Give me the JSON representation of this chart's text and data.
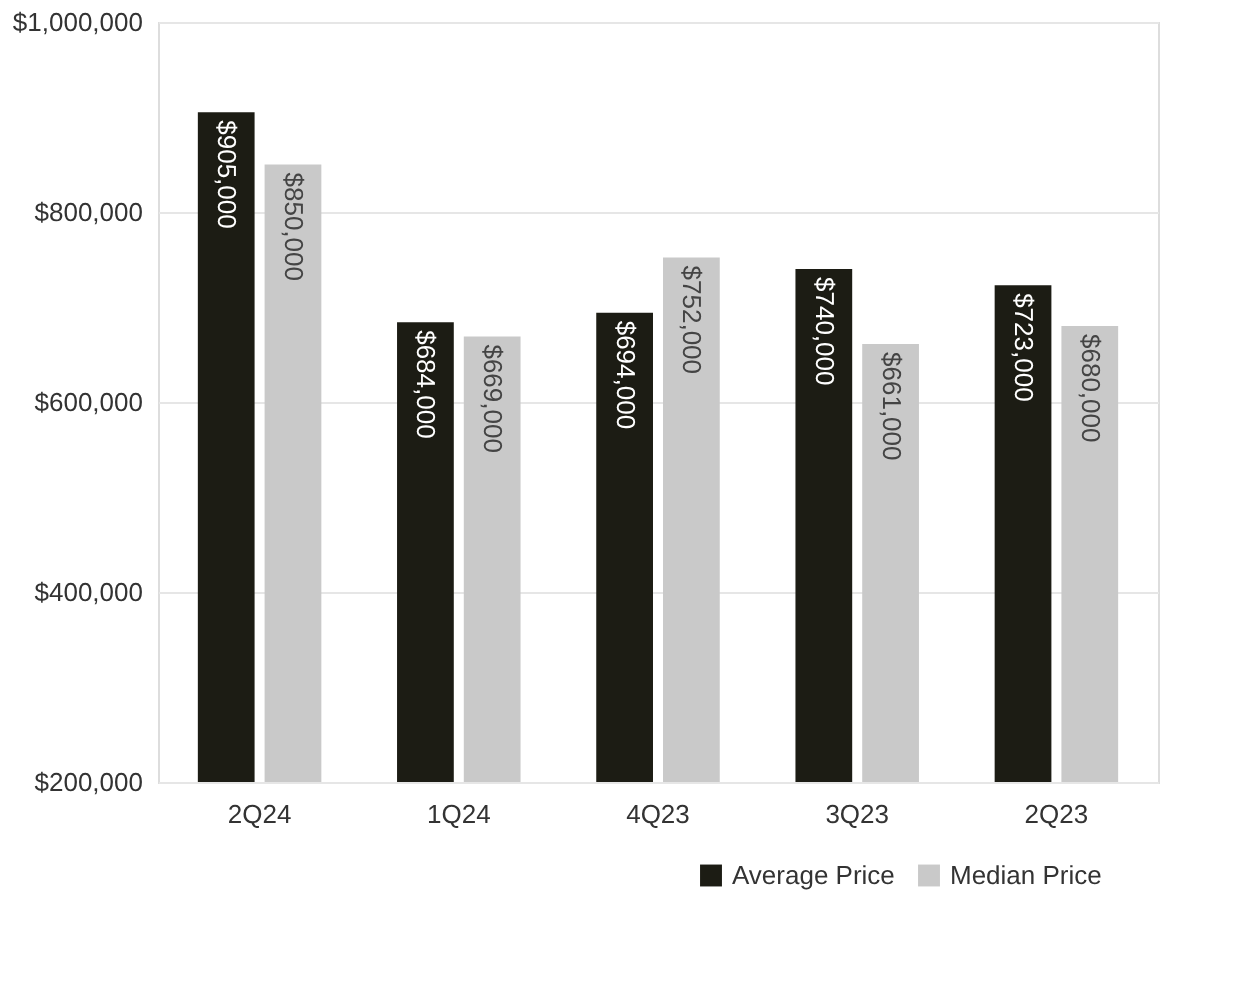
{
  "chart_data": {
    "type": "bar",
    "categories": [
      "2Q24",
      "1Q24",
      "4Q23",
      "3Q23",
      "2Q23"
    ],
    "series": [
      {
        "name": "Average Price",
        "color": "#1c1c14",
        "values": [
          905000,
          684000,
          694000,
          740000,
          723000
        ],
        "value_labels": [
          "$905,000",
          "$684,000",
          "$694,000",
          "$740,000",
          "$723,000"
        ]
      },
      {
        "name": "Median Price",
        "color": "#c9c9c9",
        "values": [
          850000,
          669000,
          752000,
          661000,
          680000
        ],
        "value_labels": [
          "$850,000",
          "$669,000",
          "$752,000",
          "$661,000",
          "$680,000"
        ]
      }
    ],
    "ylim": [
      200000,
      1000000
    ],
    "yticks": [
      {
        "value": 200000,
        "label": "$200,000"
      },
      {
        "value": 400000,
        "label": "$400,000"
      },
      {
        "value": 600000,
        "label": "$600,000"
      },
      {
        "value": 800000,
        "label": "$800,000"
      },
      {
        "value": 1000000,
        "label": "$1,000,000"
      }
    ],
    "grid": "y",
    "legend": "bottom right"
  }
}
